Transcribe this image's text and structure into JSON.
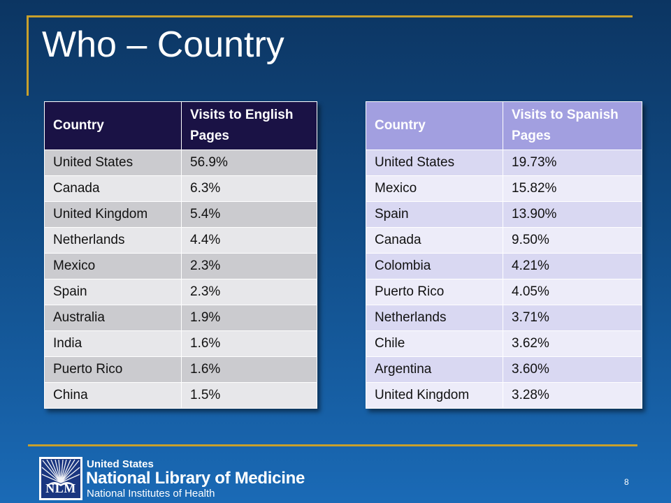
{
  "slide": {
    "title": "Who – Country",
    "page_number": "8"
  },
  "english_table": {
    "headers": [
      "Country",
      "Visits to English Pages"
    ],
    "rows": [
      [
        "United States",
        "56.9%"
      ],
      [
        "Canada",
        "6.3%"
      ],
      [
        "United Kingdom",
        "5.4%"
      ],
      [
        "Netherlands",
        "4.4%"
      ],
      [
        "Mexico",
        "2.3%"
      ],
      [
        "Spain",
        "2.3%"
      ],
      [
        "Australia",
        "1.9%"
      ],
      [
        "India",
        "1.6%"
      ],
      [
        "Puerto Rico",
        "1.6%"
      ],
      [
        "China",
        "1.5%"
      ]
    ]
  },
  "spanish_table": {
    "headers": [
      "Country",
      "Visits to Spanish Pages"
    ],
    "rows": [
      [
        "United States",
        "19.73%"
      ],
      [
        "Mexico",
        "15.82%"
      ],
      [
        "Spain",
        "13.90%"
      ],
      [
        "Canada",
        "9.50%"
      ],
      [
        "Colombia",
        "4.21%"
      ],
      [
        "Puerto Rico",
        "4.05%"
      ],
      [
        "Netherlands",
        "3.71%"
      ],
      [
        "Chile",
        "3.62%"
      ],
      [
        "Argentina",
        "3.60%"
      ],
      [
        "United Kingdom",
        "3.28%"
      ]
    ]
  },
  "footer": {
    "logo_text": "NLM",
    "org_line1": "United States",
    "org_line2": "National Library of Medicine",
    "org_line3": "National Institutes of Health"
  },
  "colors": {
    "background_top": "#0c3562",
    "background_bottom": "#1a6ab6",
    "accent_gold": "#c8a02c",
    "english_header": "#1a1245",
    "spanish_header": "#a29fe0"
  }
}
